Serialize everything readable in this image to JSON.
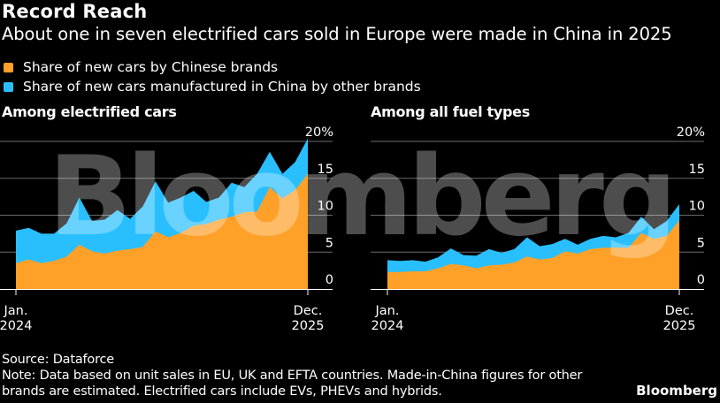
{
  "title": "Record Reach",
  "subtitle": "About one in seven electrified cars sold in Europe were made in China in 2025",
  "legend": [
    {
      "label": "Share of new cars by Chinese brands",
      "color": "#FFA028"
    },
    {
      "label": "Share of new cars manufactured in China by other brands",
      "color": "#29BFFF"
    }
  ],
  "watermark": "Bloomberg",
  "footer": {
    "source": "Source: Dataforce",
    "note_line1": "Note: Data based on unit sales in EU, UK and EFTA countries. Made-in-China figures for other",
    "note_line2": "brands are estimated. Electrified cars include EVs, PHEVs and hybrids.",
    "brand": "Bloomberg"
  },
  "chart_data": [
    {
      "type": "area",
      "stacked": true,
      "title": "Among electrified cars",
      "xlabel": "",
      "ylabel": "",
      "x": [
        "Jan. 2024",
        "Feb. 2024",
        "Mar. 2024",
        "Apr. 2024",
        "May 2024",
        "Jun. 2024",
        "Jul. 2024",
        "Aug. 2024",
        "Sep. 2024",
        "Oct. 2024",
        "Nov. 2024",
        "Dec. 2024",
        "Jan. 2025",
        "Feb. 2025",
        "Mar. 2025",
        "Apr. 2025",
        "May 2025",
        "Jun. 2025",
        "Jul. 2025",
        "Aug. 2025",
        "Sep. 2025",
        "Oct. 2025",
        "Nov. 2025",
        "Dec. 2025"
      ],
      "x_tick_labels": [
        {
          "line1": "Jan.",
          "line2": "2024"
        },
        {
          "line1": "Dec.",
          "line2": "2025"
        }
      ],
      "y_ticks": [
        "0",
        "5",
        "10",
        "15",
        "20%"
      ],
      "ylim": [
        0,
        20
      ],
      "grid": true,
      "y_axis_position": "right",
      "series": [
        {
          "name": "Share of new cars by Chinese brands",
          "color": "#FFA028",
          "values": [
            3.5,
            4.0,
            3.5,
            3.8,
            4.4,
            6.0,
            5.1,
            4.8,
            5.2,
            5.4,
            5.7,
            7.8,
            7.0,
            7.6,
            8.6,
            8.8,
            9.4,
            9.8,
            10.4,
            10.5,
            13.8,
            12.3,
            13.4,
            15.6
          ]
        },
        {
          "name": "Share of new cars manufactured in China by other brands",
          "color": "#29BFFF",
          "values": [
            4.4,
            4.3,
            4.0,
            3.7,
            4.5,
            6.4,
            4.1,
            4.6,
            5.5,
            4.1,
            5.5,
            6.8,
            4.7,
            4.8,
            4.7,
            3.0,
            3.0,
            4.6,
            3.4,
            5.1,
            4.8,
            3.3,
            3.8,
            4.8
          ]
        }
      ]
    },
    {
      "type": "area",
      "stacked": true,
      "title": "Among all fuel types",
      "xlabel": "",
      "ylabel": "",
      "x": [
        "Jan. 2024",
        "Feb. 2024",
        "Mar. 2024",
        "Apr. 2024",
        "May 2024",
        "Jun. 2024",
        "Jul. 2024",
        "Aug. 2024",
        "Sep. 2024",
        "Oct. 2024",
        "Nov. 2024",
        "Dec. 2024",
        "Jan. 2025",
        "Feb. 2025",
        "Mar. 2025",
        "Apr. 2025",
        "May 2025",
        "Jun. 2025",
        "Jul. 2025",
        "Aug. 2025",
        "Sep. 2025",
        "Oct. 2025",
        "Nov. 2025",
        "Dec. 2025"
      ],
      "x_tick_labels": [
        {
          "line1": "Jan.",
          "line2": "2024"
        },
        {
          "line1": "Dec.",
          "line2": "2025"
        }
      ],
      "y_ticks": [
        "0",
        "5",
        "10",
        "15",
        "20%"
      ],
      "ylim": [
        0,
        20
      ],
      "grid": true,
      "y_axis_position": "right",
      "series": [
        {
          "name": "Share of new cars by Chinese brands",
          "color": "#FFA028",
          "values": [
            2.3,
            2.3,
            2.4,
            2.4,
            2.8,
            3.4,
            3.2,
            2.8,
            3.2,
            3.3,
            3.6,
            4.4,
            4.0,
            4.2,
            5.1,
            4.8,
            5.4,
            5.6,
            5.6,
            5.6,
            7.6,
            6.8,
            7.2,
            9.3
          ]
        },
        {
          "name": "Share of new cars manufactured in China by other brands",
          "color": "#29BFFF",
          "values": [
            1.6,
            1.5,
            1.5,
            1.3,
            1.5,
            2.1,
            1.4,
            1.7,
            2.2,
            1.6,
            1.8,
            2.6,
            1.8,
            1.9,
            1.7,
            1.2,
            1.4,
            1.6,
            1.4,
            2.0,
            2.2,
            1.3,
            2.0,
            2.2
          ]
        }
      ]
    }
  ]
}
